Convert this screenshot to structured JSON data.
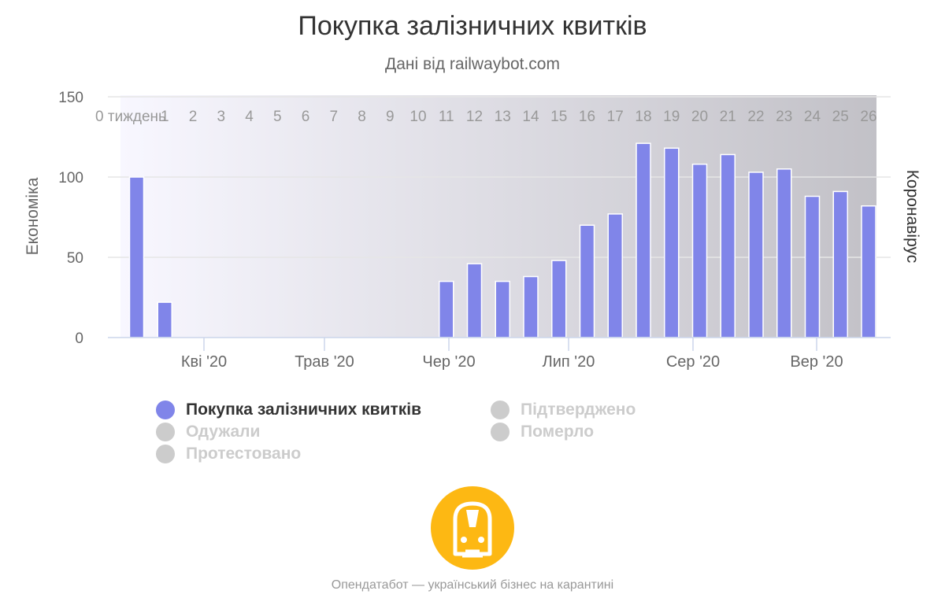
{
  "title": "Покупка залізничних квитків",
  "subtitle": "Дані від railwaybot.com",
  "footer_text": "Опендатабот — український бізнес на карантині",
  "colors": {
    "bar": "#8085e9",
    "bar_stroke": "#ffffff",
    "band_start": "#f8f7ff",
    "band_end": "#c2c1c7",
    "grid": "#e6e6e6",
    "axis": "#ccd6eb",
    "logo": "#fdb813",
    "inactive": "#cccccc"
  },
  "legend": [
    {
      "label": "Покупка залізничних квитків",
      "color": "#8085e9",
      "active": true
    },
    {
      "label": "Підтверджено",
      "color": "#cccccc",
      "active": false
    },
    {
      "label": "Одужали",
      "color": "#cccccc",
      "active": false
    },
    {
      "label": "Померло",
      "color": "#cccccc",
      "active": false
    },
    {
      "label": "Протестовано",
      "color": "#cccccc",
      "active": false
    }
  ],
  "chart_data": {
    "type": "bar",
    "title": "Покупка залізничних квитків",
    "subtitle": "Дані від railwaybot.com",
    "ylabel": "Економіка",
    "ylabel_right": "Коронавірус",
    "ylim": [
      0,
      150
    ],
    "yticks": [
      0,
      50,
      100,
      150
    ],
    "grid": true,
    "legend_position": "bottom",
    "week_labels": [
      "0 тиждень",
      "1",
      "2",
      "3",
      "4",
      "5",
      "6",
      "7",
      "8",
      "9",
      "10",
      "11",
      "12",
      "13",
      "14",
      "15",
      "16",
      "17",
      "18",
      "19",
      "20",
      "21",
      "22",
      "23",
      "24",
      "25",
      "26"
    ],
    "month_labels": [
      "Кві '20",
      "Трав '20",
      "Чер '20",
      "Лип '20",
      "Сер '20",
      "Вер '20"
    ],
    "series": [
      {
        "name": "Покупка залізничних квитків",
        "values": [
          100,
          22,
          0,
          0,
          0,
          0,
          0,
          0,
          0,
          0,
          0,
          35,
          46,
          35,
          38,
          48,
          70,
          77,
          121,
          118,
          108,
          114,
          103,
          105,
          88,
          91,
          82
        ]
      }
    ]
  }
}
